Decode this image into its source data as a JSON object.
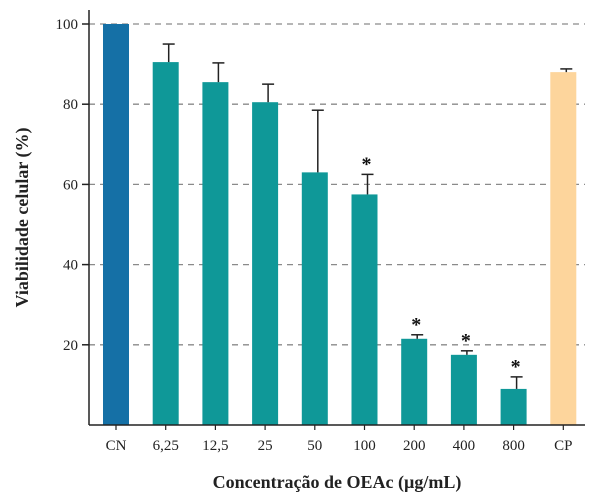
{
  "chart_data": {
    "type": "bar",
    "title": "",
    "xlabel": "Concentração de OEAc (µg/mL)",
    "ylabel": "Viabilidade celular (%)",
    "ylim": [
      0,
      100
    ],
    "yticks": [
      20,
      40,
      60,
      80,
      100
    ],
    "grid": "horizontal dashed",
    "categories": [
      "CN",
      "6,25",
      "12,5",
      "25",
      "50",
      "100",
      "200",
      "400",
      "800",
      "CP"
    ],
    "values": [
      100,
      90.5,
      85.5,
      80.5,
      63,
      57.5,
      21.5,
      17.5,
      9,
      88
    ],
    "errors": [
      0,
      4.5,
      4.8,
      4.5,
      15.5,
      5,
      1,
      1,
      3,
      0.8
    ],
    "significant": [
      false,
      false,
      false,
      false,
      false,
      true,
      true,
      true,
      true,
      false
    ],
    "significance_marker": "*",
    "colors": [
      "#1570a6",
      "#0f9898",
      "#0f9898",
      "#0f9898",
      "#0f9898",
      "#0f9898",
      "#0f9898",
      "#0f9898",
      "#0f9898",
      "#fdd59c"
    ]
  }
}
